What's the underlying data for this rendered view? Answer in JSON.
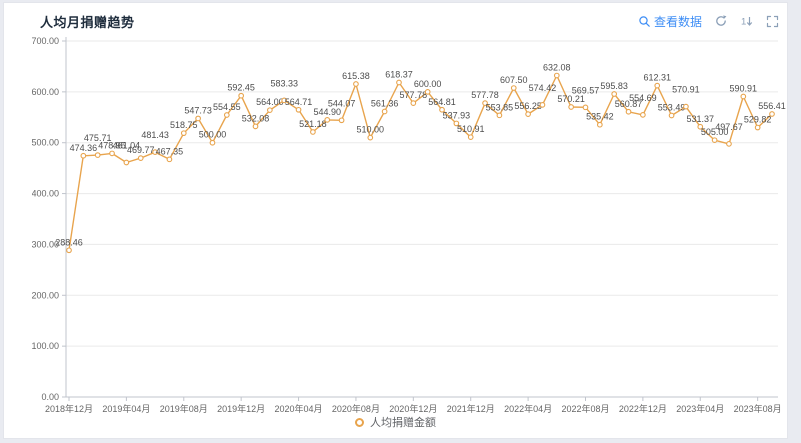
{
  "header": {
    "title": "人均月捐赠趋势",
    "actions": {
      "view_data_label": "查看数据",
      "sort_icon_text": "1↓"
    }
  },
  "colors": {
    "accent_blue": "#3d8df5",
    "line_orange": "#e8a44d",
    "icon_gray": "#8ca0b8",
    "title_color": "#1f2d3d",
    "axis_text": "#666666",
    "point_label_text": "#4d4d4d",
    "grid_line": "#eaeaea",
    "axis_line": "#c0c4cc",
    "card_bg": "#ffffff",
    "page_bg": "#e9ebf1"
  },
  "legend": {
    "label": "人均捐赠金额"
  },
  "chart_data": {
    "type": "line",
    "title": "人均月捐赠趋势",
    "series": [
      {
        "name": "人均捐赠金额",
        "values": [
          288.46,
          474.36,
          475.71,
          478.95,
          461.04,
          469.77,
          481.43,
          467.35,
          518.75,
          547.73,
          500.0,
          554.55,
          592.45,
          532.08,
          564.0,
          583.33,
          564.71,
          521.18,
          544.9,
          544.07,
          615.38,
          510.0,
          561.36,
          618.37,
          577.78,
          600.0,
          564.81,
          537.93,
          510.91,
          577.78,
          553.85,
          607.5,
          556.25,
          574.42,
          632.08,
          570.21,
          569.57,
          535.42,
          595.83,
          560.87,
          554.69,
          612.31,
          553.49,
          570.91,
          531.37,
          505.0,
          497.67,
          590.91,
          529.82,
          556.41
        ]
      }
    ],
    "x_tick_labels": [
      "2018年12月",
      "2019年04月",
      "2019年08月",
      "2019年12月",
      "2020年04月",
      "2020年08月",
      "2020年12月",
      "2021年12月",
      "2022年04月",
      "2022年08月",
      "2022年12月",
      "2023年04月",
      "2023年08月"
    ],
    "x_tick_every_n_points": 4,
    "y_tick_labels": [
      "0.00",
      "100.00",
      "200.00",
      "300.00",
      "400.00",
      "500.00",
      "600.00",
      "700.00"
    ],
    "ylim": [
      0,
      700
    ],
    "grid": true,
    "point_labels_visible": true,
    "legend_position": "bottom"
  }
}
